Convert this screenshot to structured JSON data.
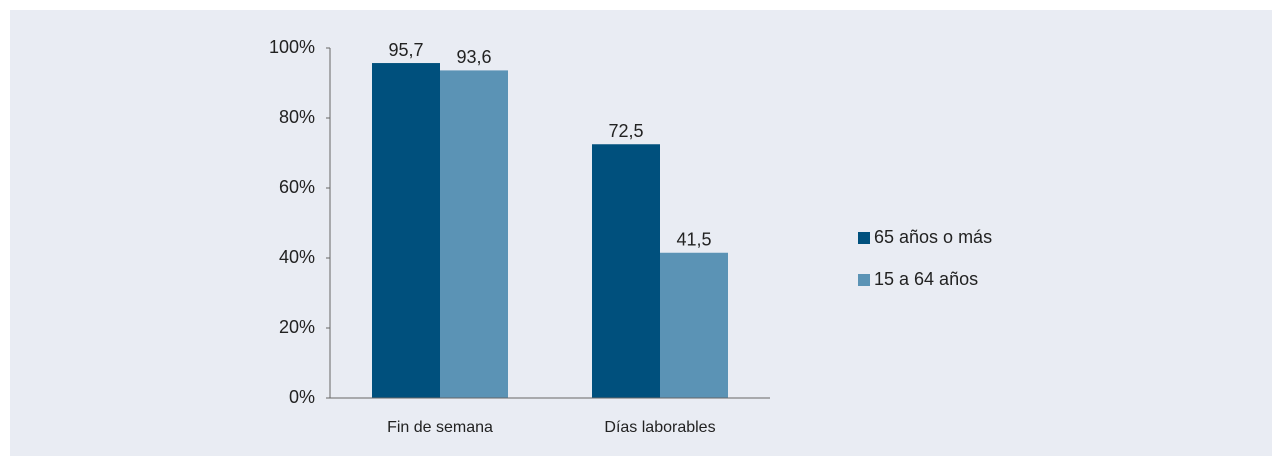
{
  "chart_data": {
    "type": "bar",
    "categories": [
      "Fin de semana",
      "Días laborables"
    ],
    "series": [
      {
        "name": "65 años o más",
        "color": "#00507d",
        "values": [
          95.7,
          72.5
        ],
        "value_labels": [
          "95,7",
          "72,5"
        ]
      },
      {
        "name": "15 a 64 años",
        "color": "#5b93b5",
        "values": [
          93.6,
          41.5
        ],
        "value_labels": [
          "93,6",
          "41,5"
        ]
      }
    ],
    "ylim": [
      0,
      100
    ],
    "yticks": [
      {
        "value": 0,
        "label": "0%"
      },
      {
        "value": 20,
        "label": "20%"
      },
      {
        "value": 40,
        "label": "40%"
      },
      {
        "value": 60,
        "label": "60%"
      },
      {
        "value": 80,
        "label": "80%"
      },
      {
        "value": 100,
        "label": "100%"
      }
    ],
    "legend": "right"
  }
}
